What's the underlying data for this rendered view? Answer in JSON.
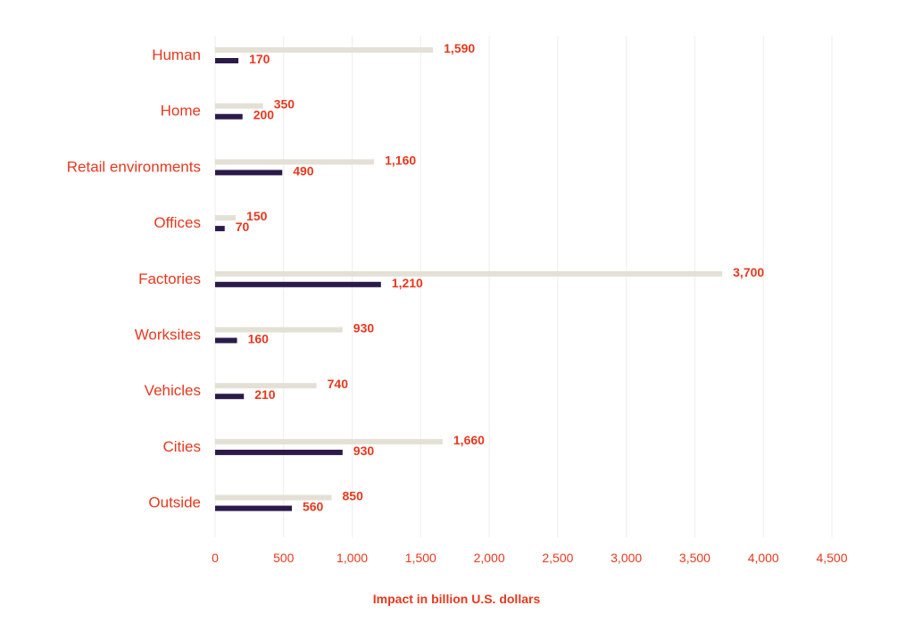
{
  "chart_data": {
    "type": "bar",
    "orientation": "horizontal",
    "categories": [
      "Human",
      "Home",
      "Retail environments",
      "Offices",
      "Factories",
      "Worksites",
      "Vehicles",
      "Cities",
      "Outside"
    ],
    "series": [
      {
        "values": [
          1590,
          350,
          1160,
          150,
          3700,
          930,
          740,
          1660,
          850
        ],
        "value_labels": [
          "1,590",
          "350",
          "1,160",
          "150",
          "3,700",
          "930",
          "740",
          "1,660",
          "850"
        ],
        "color": "#e4e0d6"
      },
      {
        "values": [
          170,
          200,
          490,
          70,
          1210,
          160,
          210,
          930,
          560
        ],
        "value_labels": [
          "170",
          "200",
          "490",
          "70",
          "1,210",
          "160",
          "210",
          "930",
          "560"
        ],
        "color": "#2b1a4a"
      }
    ],
    "xlabel": "Impact in billion U.S. dollars",
    "ylabel": "",
    "xlim": [
      0,
      4500
    ],
    "xticks": [
      0,
      500,
      1000,
      1500,
      2000,
      2500,
      3000,
      3500,
      4000,
      4500
    ],
    "xtick_labels": [
      "0",
      "500",
      "1,000",
      "1,500",
      "2,000",
      "2,500",
      "3,000",
      "3,500",
      "4,000",
      "4,500"
    ],
    "grid": "vertical",
    "legend": "none",
    "colors": {
      "label_text": "#e8381e",
      "grid": "#eeeeee"
    }
  }
}
